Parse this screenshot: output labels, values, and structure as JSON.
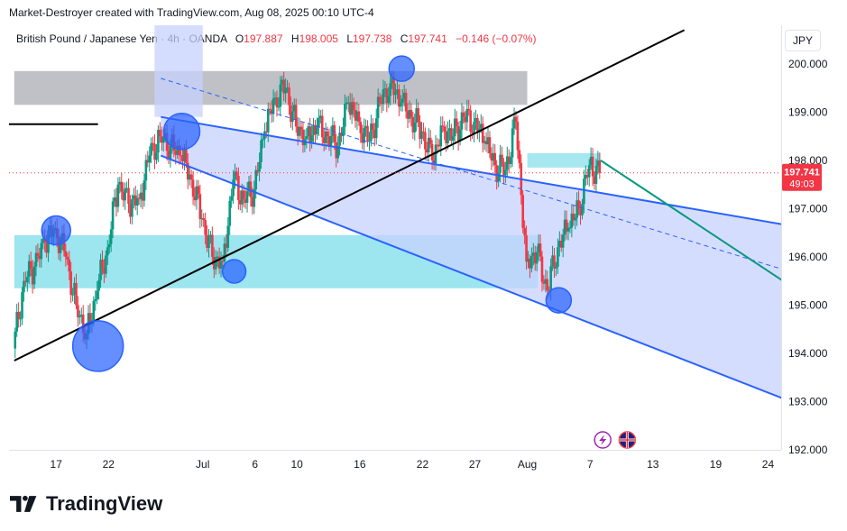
{
  "header": {
    "attribution": "Market-Destroyer created with TradingView.com, Aug 08, 2025 00:10 UTC-4",
    "symbol": "British Pound / Japanese Yen · 4h · OANDA",
    "open_label": "O",
    "open": "197.887",
    "high_label": "H",
    "high": "198.005",
    "low_label": "L",
    "low": "197.738",
    "close_label": "C",
    "close": "197.741",
    "change": "−0.146 (−0.07%)",
    "currency_button": "JPY"
  },
  "brand": {
    "name": "TradingView"
  },
  "price_badge": {
    "price": "197.741",
    "countdown": "49:03"
  },
  "icons": {
    "event_icon": "lightning-icon",
    "flag_icon": "uk-flag-icon"
  },
  "colors": {
    "up": "#089981",
    "down": "#f23645",
    "channel": "#2962ff",
    "channel_fill": "#c7d2fe",
    "zone_cyan": "#4dd0e1",
    "zone_gray": "#9598a1",
    "projection": "#089981",
    "trendline": "#000000"
  },
  "chart_data": {
    "type": "candlestick",
    "symbol": "GBPJPY",
    "timeframe": "4h",
    "ylim": [
      192.0,
      200.8
    ],
    "y_ticks": [
      "200.000",
      "199.000",
      "198.000",
      "197.000",
      "196.000",
      "195.000",
      "194.000",
      "193.000",
      "192.000"
    ],
    "x_ticks": [
      "17",
      "22",
      "Jul",
      "6",
      "10",
      "16",
      "22",
      "27",
      "Aug",
      "7",
      "13",
      "19",
      "24"
    ],
    "x_tick_dates": [
      "2025-06-17",
      "2025-06-22",
      "2025-07-01",
      "2025-07-06",
      "2025-07-10",
      "2025-07-16",
      "2025-07-22",
      "2025-07-27",
      "2025-08-01",
      "2025-08-07",
      "2025-08-13",
      "2025-08-19",
      "2025-08-24"
    ],
    "last_price": 197.741,
    "series_close": [
      [
        "2025-06-13",
        194.1
      ],
      [
        "2025-06-14",
        195.5
      ],
      [
        "2025-06-15",
        195.8
      ],
      [
        "2025-06-16",
        196.3
      ],
      [
        "2025-06-17",
        196.6
      ],
      [
        "2025-06-18",
        196.0
      ],
      [
        "2025-06-19",
        195.0
      ],
      [
        "2025-06-20",
        194.4
      ],
      [
        "2025-06-21",
        195.3
      ],
      [
        "2025-06-22",
        196.2
      ],
      [
        "2025-06-23",
        197.5
      ],
      [
        "2025-06-24",
        197.1
      ],
      [
        "2025-06-25",
        197.2
      ],
      [
        "2025-06-26",
        198.1
      ],
      [
        "2025-06-27",
        198.5
      ],
      [
        "2025-06-28",
        198.3
      ],
      [
        "2025-06-29",
        198.1
      ],
      [
        "2025-06-30",
        197.6
      ],
      [
        "2025-07-01",
        196.8
      ],
      [
        "2025-07-02",
        196.0
      ],
      [
        "2025-07-03",
        195.9
      ],
      [
        "2025-07-04",
        197.6
      ],
      [
        "2025-07-05",
        197.2
      ],
      [
        "2025-07-06",
        197.4
      ],
      [
        "2025-07-07",
        198.6
      ],
      [
        "2025-07-08",
        199.3
      ],
      [
        "2025-07-09",
        199.5
      ],
      [
        "2025-07-10",
        198.7
      ],
      [
        "2025-07-11",
        198.5
      ],
      [
        "2025-07-12",
        198.7
      ],
      [
        "2025-07-13",
        198.5
      ],
      [
        "2025-07-14",
        198.3
      ],
      [
        "2025-07-15",
        199.2
      ],
      [
        "2025-07-16",
        198.8
      ],
      [
        "2025-07-17",
        198.4
      ],
      [
        "2025-07-18",
        199.2
      ],
      [
        "2025-07-19",
        199.6
      ],
      [
        "2025-07-20",
        199.2
      ],
      [
        "2025-07-21",
        198.9
      ],
      [
        "2025-07-22",
        198.6
      ],
      [
        "2025-07-23",
        198.0
      ],
      [
        "2025-07-24",
        198.7
      ],
      [
        "2025-07-25",
        198.5
      ],
      [
        "2025-07-26",
        198.9
      ],
      [
        "2025-07-27",
        198.8
      ],
      [
        "2025-07-28",
        198.4
      ],
      [
        "2025-07-29",
        197.9
      ],
      [
        "2025-07-30",
        197.8
      ],
      [
        "2025-07-31",
        198.8
      ],
      [
        "2025-08-01",
        195.9
      ],
      [
        "2025-08-02",
        196.1
      ],
      [
        "2025-08-03",
        195.3
      ],
      [
        "2025-08-04",
        196.2
      ],
      [
        "2025-08-05",
        196.6
      ],
      [
        "2025-08-06",
        197.0
      ],
      [
        "2025-08-07",
        197.9
      ],
      [
        "2025-08-08",
        197.741
      ]
    ],
    "annotations": {
      "channel_upper": [
        [
          "2025-06-27",
          198.9
        ],
        [
          "2025-09-07",
          196.2
        ]
      ],
      "channel_lower": [
        [
          "2025-06-27",
          198.1
        ],
        [
          "2025-09-07",
          192.0
        ]
      ],
      "channel_mid_dashed": [
        [
          "2025-06-27",
          199.7
        ],
        [
          "2025-09-07",
          194.9
        ]
      ],
      "black_trendline": [
        [
          "2025-06-13",
          193.85
        ],
        [
          "2025-08-16",
          200.7
        ]
      ],
      "short_horizontal": [
        [
          "2025-06-13",
          198.75
        ],
        [
          "2025-06-21",
          198.75
        ]
      ],
      "gray_zone": [
        [
          "2025-06-13",
          199.15
        ],
        [
          "2025-08-01",
          199.85
        ]
      ],
      "cyan_zone": [
        [
          "2025-06-13",
          195.35
        ],
        [
          "2025-08-02",
          196.45
        ]
      ],
      "small_cyan_zone": [
        [
          "2025-08-01",
          197.85
        ],
        [
          "2025-08-08",
          198.15
        ]
      ],
      "projection": [
        [
          "2025-08-08",
          198.0
        ],
        [
          "2025-09-07",
          193.7
        ]
      ],
      "circles": [
        [
          "2025-06-17",
          196.55
        ],
        [
          "2025-06-21",
          194.15
        ],
        [
          "2025-06-29",
          198.6
        ],
        [
          "2025-07-04",
          195.7
        ],
        [
          "2025-07-20",
          199.9
        ],
        [
          "2025-08-04",
          195.1
        ]
      ]
    }
  }
}
